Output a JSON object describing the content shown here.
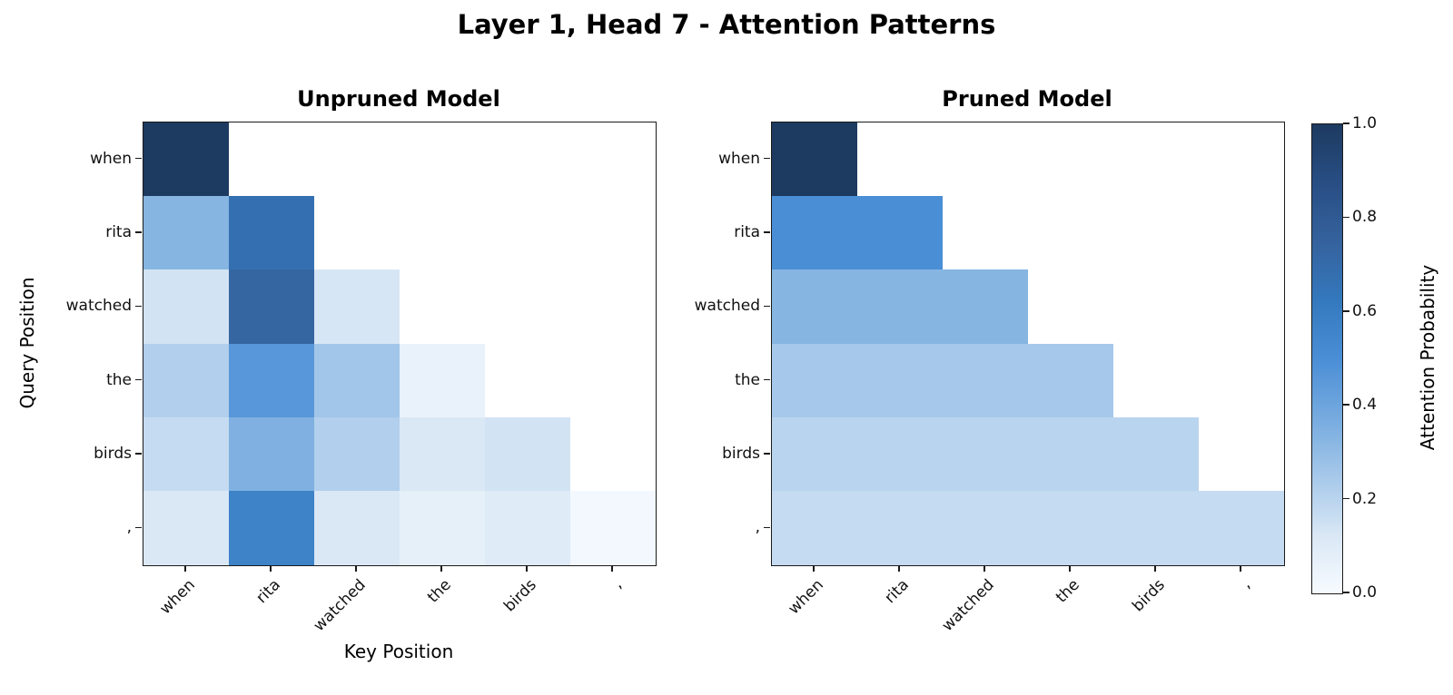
{
  "title": "Layer 1, Head 7 - Attention Patterns",
  "colorbar": {
    "label": "Attention Probability",
    "tick_labels": [
      "0.0",
      "0.2",
      "0.4",
      "0.6",
      "0.8",
      "1.0"
    ],
    "tick_values": [
      0,
      0.2,
      0.4,
      0.6,
      0.8,
      1.0
    ]
  },
  "colors": {
    "background": "#ffffff",
    "spine": "#1a1a1a",
    "text": "#000000",
    "colormap_name": "Blues",
    "colormap_stops": [
      [
        0.0,
        "#f7fbff"
      ],
      [
        0.125,
        "#d9e7f5"
      ],
      [
        0.167,
        "#c6dcf1"
      ],
      [
        0.25,
        "#a6c8ea"
      ],
      [
        0.333,
        "#85b4e2"
      ],
      [
        0.5,
        "#4a8ed6"
      ],
      [
        0.625,
        "#3478bd"
      ],
      [
        0.75,
        "#35629d"
      ],
      [
        0.875,
        "#284e84"
      ],
      [
        1.0,
        "#1d3a60"
      ]
    ]
  },
  "tokens": [
    "when",
    "rita",
    "watched",
    "the",
    "birds",
    ","
  ],
  "chart_data": [
    {
      "type": "heatmap",
      "title": "Unpruned Model",
      "xlabel": "Key Position",
      "ylabel": "Query Position",
      "x_ticklabels": [
        "when",
        "rita",
        "watched",
        "the",
        "birds",
        ","
      ],
      "y_ticklabels": [
        "when",
        "rita",
        "watched",
        "the",
        "birds",
        ","
      ],
      "vmin": 0,
      "vmax": 1,
      "mask": "upper triangle blank (causal attention)",
      "values": [
        [
          1.0,
          null,
          null,
          null,
          null,
          null
        ],
        [
          0.33,
          0.67,
          null,
          null,
          null,
          null
        ],
        [
          0.14,
          0.73,
          0.13,
          null,
          null,
          null
        ],
        [
          0.22,
          0.46,
          0.26,
          0.06,
          null,
          null
        ],
        [
          0.17,
          0.35,
          0.22,
          0.12,
          0.14,
          null
        ],
        [
          0.12,
          0.57,
          0.12,
          0.07,
          0.1,
          0.02
        ]
      ]
    },
    {
      "type": "heatmap",
      "title": "Pruned Model",
      "xlabel": "",
      "ylabel": "",
      "x_ticklabels": [
        "when",
        "rita",
        "watched",
        "the",
        "birds",
        ","
      ],
      "y_ticklabels": [
        "when",
        "rita",
        "watched",
        "the",
        "birds",
        ","
      ],
      "vmin": 0,
      "vmax": 1,
      "mask": "upper triangle blank (causal attention)",
      "values": [
        [
          1.0,
          null,
          null,
          null,
          null,
          null
        ],
        [
          0.5,
          0.5,
          null,
          null,
          null,
          null
        ],
        [
          0.33,
          0.33,
          0.33,
          null,
          null,
          null
        ],
        [
          0.25,
          0.25,
          0.25,
          0.25,
          null,
          null
        ],
        [
          0.2,
          0.2,
          0.2,
          0.2,
          0.2,
          null
        ],
        [
          0.17,
          0.17,
          0.17,
          0.17,
          0.17,
          0.17
        ]
      ]
    }
  ]
}
